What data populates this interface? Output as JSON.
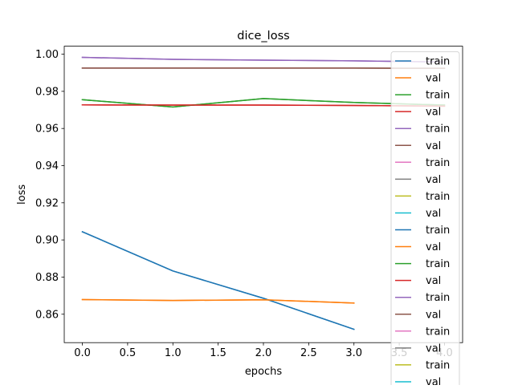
{
  "chart_data": {
    "type": "line",
    "title": "dice_loss",
    "xlabel": "epochs",
    "ylabel": "loss",
    "xlim": [
      -0.2,
      4.2
    ],
    "ylim": [
      0.8447,
      1.0043
    ],
    "x_ticks": [
      0.0,
      0.5,
      1.0,
      1.5,
      2.0,
      2.5,
      3.0,
      3.5,
      4.0
    ],
    "x_tick_labels": [
      "0.0",
      "0.5",
      "1.0",
      "1.5",
      "2.0",
      "2.5",
      "3.0",
      "3.5",
      "4.0"
    ],
    "y_ticks": [
      0.86,
      0.88,
      0.9,
      0.92,
      0.94,
      0.96,
      0.98,
      1.0
    ],
    "y_tick_labels": [
      "0.86",
      "0.88",
      "0.90",
      "0.92",
      "0.94",
      "0.96",
      "0.98",
      "1.00"
    ],
    "grid": false,
    "legend_position": "right",
    "series": [
      {
        "name": "train",
        "color": "#1f77b4",
        "x": [
          0,
          1,
          2,
          3
        ],
        "values": [
          0.9044,
          0.8833,
          0.8686,
          0.8519
        ]
      },
      {
        "name": "val",
        "color": "#ff7f0e",
        "x": [
          0,
          1,
          2,
          3
        ],
        "values": [
          0.8679,
          0.8674,
          0.8678,
          0.866
        ]
      },
      {
        "name": "train",
        "color": "#2ca02c",
        "x": [
          0,
          1,
          2,
          3,
          4
        ],
        "values": [
          0.9755,
          0.9716,
          0.9761,
          0.974,
          0.9726
        ]
      },
      {
        "name": "val",
        "color": "#d62728",
        "x": [
          0,
          1,
          2,
          3,
          4
        ],
        "values": [
          0.9727,
          0.9726,
          0.9726,
          0.9724,
          0.972
        ]
      },
      {
        "name": "train",
        "color": "#9467bd",
        "x": [
          0,
          1,
          2,
          3,
          4
        ],
        "values": [
          0.9983,
          0.9972,
          0.9968,
          0.9964,
          0.9958
        ]
      },
      {
        "name": "val",
        "color": "#8c564b",
        "x": [
          0,
          1,
          2,
          3,
          4
        ],
        "values": [
          0.9925,
          0.9925,
          0.9925,
          0.9925,
          0.9924
        ]
      },
      {
        "name": "train",
        "color": "#e377c2",
        "x": [],
        "values": []
      },
      {
        "name": "val",
        "color": "#7f7f7f",
        "x": [],
        "values": []
      },
      {
        "name": "train",
        "color": "#bcbd22",
        "x": [],
        "values": []
      },
      {
        "name": "val",
        "color": "#17becf",
        "x": [],
        "values": []
      },
      {
        "name": "train",
        "color": "#1f77b4",
        "x": [
          0,
          1,
          2,
          3
        ],
        "values": [
          0.9044,
          0.8833,
          0.8686,
          0.8519
        ]
      },
      {
        "name": "val",
        "color": "#ff7f0e",
        "x": [
          0,
          1,
          2,
          3
        ],
        "values": [
          0.8679,
          0.8674,
          0.8678,
          0.866
        ]
      },
      {
        "name": "train",
        "color": "#2ca02c",
        "x": [
          0,
          1,
          2,
          3,
          4
        ],
        "values": [
          0.9755,
          0.9716,
          0.9761,
          0.974,
          0.9726
        ]
      },
      {
        "name": "val",
        "color": "#d62728",
        "x": [
          0,
          1,
          2,
          3,
          4
        ],
        "values": [
          0.9727,
          0.9726,
          0.9726,
          0.9724,
          0.972
        ]
      },
      {
        "name": "train",
        "color": "#9467bd",
        "x": [
          0,
          1,
          2,
          3,
          4
        ],
        "values": [
          0.9983,
          0.9972,
          0.9968,
          0.9964,
          0.9958
        ]
      },
      {
        "name": "val",
        "color": "#8c564b",
        "x": [
          0,
          1,
          2,
          3,
          4
        ],
        "values": [
          0.9925,
          0.9925,
          0.9925,
          0.9925,
          0.9924
        ]
      },
      {
        "name": "train",
        "color": "#e377c2",
        "x": [],
        "values": []
      },
      {
        "name": "val",
        "color": "#7f7f7f",
        "x": [],
        "values": []
      },
      {
        "name": "train",
        "color": "#bcbd22",
        "x": [],
        "values": []
      },
      {
        "name": "val",
        "color": "#17becf",
        "x": [],
        "values": []
      }
    ]
  }
}
